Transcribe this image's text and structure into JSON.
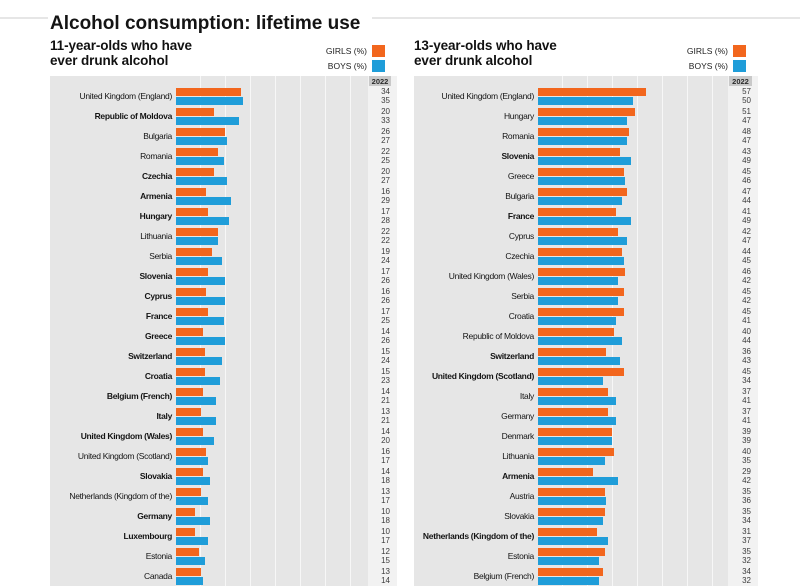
{
  "title": "Alcohol consumption: lifetime use",
  "colors": {
    "girls": "#F2661D",
    "boys": "#1F9DD9",
    "panel_bg": "#E6E6E6",
    "gridline": "#F7F7F7",
    "value_col_bg": "#F2F2F2",
    "badge_bg": "#C9C9C9",
    "title_rule": "#E6E6E6"
  },
  "chart_data": [
    {
      "type": "bar",
      "orientation": "horizontal",
      "title_line1": "11-year-olds who have",
      "title_line2": "ever drunk alcohol",
      "year": "2022",
      "xlim": [
        0,
        100
      ],
      "grid": true,
      "legend_position": "top-right",
      "categories": [
        "United Kingdom (England)",
        "Republic of Moldova",
        "Bulgaria",
        "Romania",
        "Czechia",
        "Armenia",
        "Hungary",
        "Lithuania",
        "Serbia",
        "Slovenia",
        "Cyprus",
        "France",
        "Greece",
        "Switzerland",
        "Croatia",
        "Belgium (French)",
        "Italy",
        "United Kingdom (Wales)",
        "United Kingdom (Scotland)",
        "Slovakia",
        "Netherlands (Kingdom of the)",
        "Germany",
        "Luxembourg",
        "Estonia",
        "Canada"
      ],
      "bold": [
        false,
        true,
        false,
        false,
        true,
        true,
        true,
        false,
        false,
        true,
        true,
        true,
        true,
        true,
        true,
        true,
        true,
        true,
        false,
        true,
        false,
        true,
        true,
        false,
        false
      ],
      "series": [
        {
          "name": "GIRLS (%)",
          "color": "#F2661D",
          "values": [
            34,
            20,
            26,
            22,
            20,
            16,
            17,
            22,
            19,
            17,
            16,
            17,
            14,
            15,
            15,
            14,
            13,
            14,
            16,
            14,
            13,
            10,
            10,
            12,
            13
          ]
        },
        {
          "name": "BOYS (%)",
          "color": "#1F9DD9",
          "values": [
            35,
            33,
            27,
            25,
            27,
            29,
            28,
            22,
            24,
            26,
            26,
            25,
            26,
            24,
            23,
            21,
            21,
            20,
            17,
            18,
            17,
            18,
            17,
            15,
            14
          ]
        }
      ]
    },
    {
      "type": "bar",
      "orientation": "horizontal",
      "title_line1": "13-year-olds who have",
      "title_line2": "ever drunk alcohol",
      "year": "2022",
      "xlim": [
        0,
        100
      ],
      "grid": true,
      "legend_position": "top-right",
      "categories": [
        "United Kingdom (England)",
        "Hungary",
        "Romania",
        "Slovenia",
        "Greece",
        "Bulgaria",
        "France",
        "Cyprus",
        "Czechia",
        "United Kingdom (Wales)",
        "Serbia",
        "Croatia",
        "Republic of Moldova",
        "Switzerland",
        "United Kingdom (Scotland)",
        "Italy",
        "Germany",
        "Denmark",
        "Lithuania",
        "Armenia",
        "Austria",
        "Slovakia",
        "Netherlands (Kingdom of the)",
        "Estonia",
        "Belgium (French)"
      ],
      "bold": [
        false,
        false,
        false,
        true,
        false,
        false,
        true,
        false,
        false,
        false,
        false,
        false,
        false,
        true,
        true,
        false,
        false,
        false,
        false,
        true,
        false,
        false,
        true,
        false,
        false
      ],
      "series": [
        {
          "name": "GIRLS (%)",
          "color": "#F2661D",
          "values": [
            57,
            51,
            48,
            43,
            45,
            47,
            41,
            42,
            44,
            46,
            45,
            45,
            40,
            36,
            45,
            37,
            37,
            39,
            40,
            29,
            35,
            35,
            31,
            35,
            34
          ]
        },
        {
          "name": "BOYS (%)",
          "color": "#1F9DD9",
          "values": [
            50,
            47,
            47,
            49,
            46,
            44,
            49,
            47,
            45,
            42,
            42,
            41,
            44,
            43,
            34,
            41,
            41,
            39,
            35,
            42,
            36,
            34,
            37,
            32,
            32
          ]
        }
      ]
    }
  ]
}
